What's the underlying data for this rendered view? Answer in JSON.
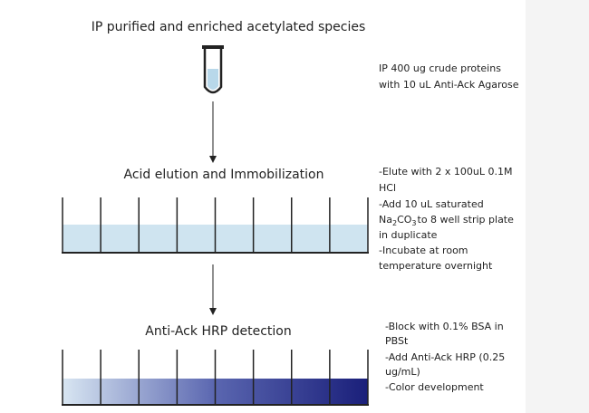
{
  "steps": [
    {
      "title": "IP purified and enriched acetylated species",
      "notes": [
        "IP 400 ug crude proteins",
        "with 10 uL Anti-Ack Agarose"
      ]
    },
    {
      "title": "Acid elution and Immobilization",
      "notes": [
        "-Elute with 2 x 100uL 0.1M",
        "HCl",
        "-Add 10 uL saturated",
        [
          "Na",
          "2",
          "CO",
          "3",
          "to 8 well strip plate"
        ],
        "in duplicate",
        "-Incubate at room",
        "temperature overnight"
      ]
    },
    {
      "title": "Anti-Ack HRP detection",
      "notes": [
        "-Block with 0.1% BSA in",
        "PBSt",
        "-Add Anti-Ack HRP (0.25",
        "ug/mL)",
        "-Color development"
      ]
    }
  ]
}
